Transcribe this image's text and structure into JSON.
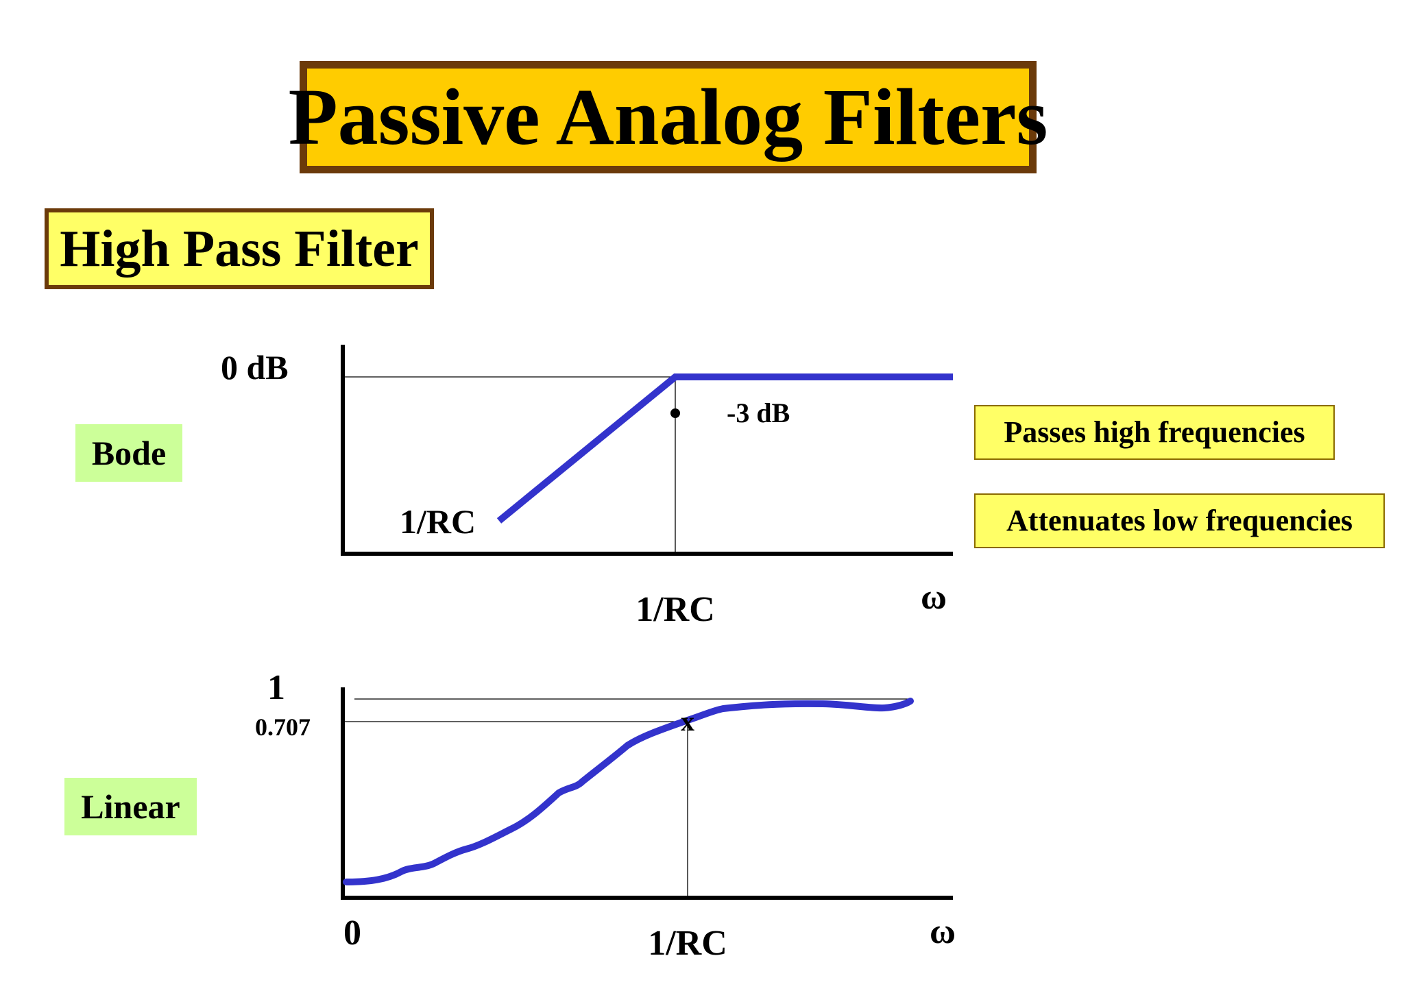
{
  "title": "Passive Analog Filters",
  "subtitle": "High Pass Filter",
  "tags": {
    "bode": "Bode",
    "linear": "Linear"
  },
  "notes": {
    "passes": "Passes high frequencies",
    "attenuates": "Attenuates low frequencies"
  },
  "bode": {
    "y_label": "0 dB",
    "point_label": "-3 dB",
    "slope_label": "1/RC",
    "x_label": "1/RC",
    "x_axis_symbol": "ω"
  },
  "linear": {
    "y_top_label": "1",
    "y_mid_label": "0.707",
    "marker_label": "x",
    "origin_label": "0",
    "x_label": "1/RC",
    "x_axis_symbol": "ω"
  },
  "colors": {
    "curve": "#3333cc",
    "title_bg": "#ffcc00",
    "title_border": "#6b3a0a",
    "box_bg": "#ffff66",
    "tag_bg": "#ccff99"
  }
}
